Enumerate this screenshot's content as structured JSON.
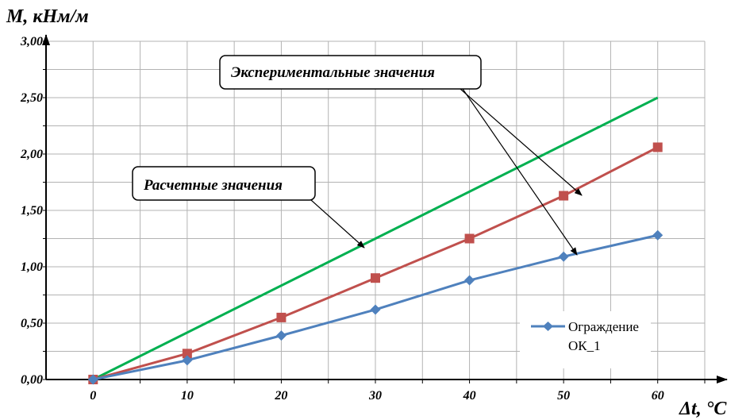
{
  "chart_data": {
    "type": "line",
    "ylabel": "M, кНм/м",
    "xlabel": "Δt, °C",
    "x_ticks": [
      "0",
      "10",
      "20",
      "30",
      "40",
      "50",
      "60"
    ],
    "y_ticks": [
      "0,00",
      "0,50",
      "1,00",
      "1,50",
      "2,00",
      "2,50",
      "3,00"
    ],
    "xlim": [
      -5,
      65
    ],
    "ylim": [
      0,
      3
    ],
    "grid": true,
    "series": [
      {
        "name": "Ограждение ОК_1",
        "color": "#4f81bd",
        "marker": "diamond",
        "x": [
          0,
          10,
          20,
          30,
          40,
          50,
          60
        ],
        "y": [
          0.0,
          0.17,
          0.39,
          0.62,
          0.88,
          1.09,
          1.28
        ]
      },
      {
        "color": "#c0504d",
        "marker": "square",
        "x": [
          0,
          10,
          20,
          30,
          40,
          50,
          60
        ],
        "y": [
          0.0,
          0.23,
          0.55,
          0.9,
          1.25,
          1.63,
          2.06
        ]
      },
      {
        "color": "#00b050",
        "marker": "none",
        "x": [
          0,
          60
        ],
        "y": [
          0.0,
          2.5
        ]
      }
    ],
    "annotations": [
      {
        "text": "Экспериментальные значения"
      },
      {
        "text": "Расчетные значения"
      }
    ],
    "legend": {
      "label_line1": "Ограждение",
      "label_line2": "ОК_1",
      "placement": "bottom-right"
    }
  }
}
